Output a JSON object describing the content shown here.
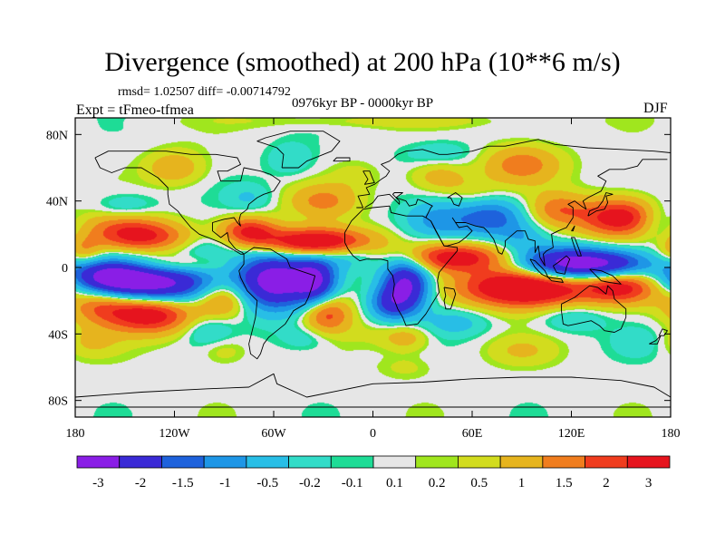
{
  "title": "Divergence (smoothed) at 200 hPa (10**6 m/s)",
  "stats_label": "rmsd= 1.02507 diff= -0.00714792",
  "experiment_label": "Expt = tFmeo-tfmea",
  "period_label": "0976kyr BP - 0000kyr BP",
  "season_label": "DJF",
  "chart_data": {
    "type": "heatmap",
    "title": "Divergence (smoothed) at 200 hPa (10**6 m/s)",
    "projection": "cylindrical-equidistant",
    "x_range": [
      -180,
      180
    ],
    "y_range": [
      -90,
      90
    ],
    "x_ticks": [
      {
        "value": -180,
        "label": "180"
      },
      {
        "value": -120,
        "label": "120W"
      },
      {
        "value": -60,
        "label": "60W"
      },
      {
        "value": 0,
        "label": "0"
      },
      {
        "value": 60,
        "label": "60E"
      },
      {
        "value": 120,
        "label": "120E"
      },
      {
        "value": 180,
        "label": "180"
      }
    ],
    "y_ticks": [
      {
        "value": 80,
        "label": "80N"
      },
      {
        "value": 40,
        "label": "40N"
      },
      {
        "value": 0,
        "label": "0"
      },
      {
        "value": -40,
        "label": "40S"
      },
      {
        "value": -80,
        "label": "80S"
      }
    ],
    "colorbar": {
      "levels": [
        "-3",
        "-2",
        "-1.5",
        "-1",
        "-0.5",
        "-0.2",
        "-0.1",
        "0.1",
        "0.2",
        "0.5",
        "1",
        "1.5",
        "2",
        "3"
      ],
      "colors": [
        "#8a1ee6",
        "#3a2ad6",
        "#1e62dc",
        "#1e96e6",
        "#28bee6",
        "#32dcc8",
        "#1edc96",
        "#e6e6e6",
        "#a0e61e",
        "#d2dc1e",
        "#e6b41e",
        "#f07d1e",
        "#f03c1e",
        "#e6141e"
      ]
    },
    "features": [
      {
        "lon": -130,
        "lat": -10,
        "value": -3.4,
        "slon": 26,
        "slat": 8
      },
      {
        "lon": -160,
        "lat": -5,
        "value": -2.6,
        "slon": 16,
        "slat": 7
      },
      {
        "lon": -60,
        "lat": -8,
        "value": -3.6,
        "slon": 16,
        "slat": 12
      },
      {
        "lon": -35,
        "lat": -8,
        "value": -2.6,
        "slon": 9,
        "slat": 10
      },
      {
        "lon": 20,
        "lat": -10,
        "value": -3.3,
        "slon": 10,
        "slat": 11
      },
      {
        "lon": 10,
        "lat": -22,
        "value": -1.6,
        "slon": 9,
        "slat": 7
      },
      {
        "lon": 115,
        "lat": 2,
        "value": -3.2,
        "slon": 20,
        "slat": 7
      },
      {
        "lon": 145,
        "lat": 2,
        "value": -2.2,
        "slon": 18,
        "slat": 6
      },
      {
        "lon": 72,
        "lat": 30,
        "value": -1.8,
        "slon": 14,
        "slat": 8
      },
      {
        "lon": 40,
        "lat": 28,
        "value": -1.2,
        "slon": 14,
        "slat": 8
      },
      {
        "lon": 172,
        "lat": 28,
        "value": -1.0,
        "slon": 10,
        "slat": 8
      },
      {
        "lon": -15,
        "lat": 8,
        "value": -0.9,
        "slon": 13,
        "slat": 6
      },
      {
        "lon": 90,
        "lat": 18,
        "value": -0.7,
        "slon": 10,
        "slat": 6
      },
      {
        "lon": -100,
        "lat": 12,
        "value": -0.6,
        "slon": 14,
        "slat": 7
      },
      {
        "lon": -150,
        "lat": 36,
        "value": -0.6,
        "slon": 14,
        "slat": 6
      },
      {
        "lon": -75,
        "lat": 42,
        "value": -0.5,
        "slon": 10,
        "slat": 6
      },
      {
        "lon": -50,
        "lat": 65,
        "value": -0.5,
        "slon": 10,
        "slat": 7
      },
      {
        "lon": 40,
        "lat": 68,
        "value": -0.5,
        "slon": 16,
        "slat": 6
      },
      {
        "lon": -40,
        "lat": -42,
        "value": -0.5,
        "slon": 12,
        "slat": 6
      },
      {
        "lon": 50,
        "lat": -33,
        "value": -0.7,
        "slon": 14,
        "slat": 6
      },
      {
        "lon": 120,
        "lat": -30,
        "value": -0.6,
        "slon": 14,
        "slat": 6
      },
      {
        "lon": -100,
        "lat": -38,
        "value": -0.6,
        "slon": 10,
        "slat": 6
      },
      {
        "lon": 160,
        "lat": -45,
        "value": -0.4,
        "slon": 10,
        "slat": 6
      },
      {
        "lon": -140,
        "lat": 18,
        "value": 2.0,
        "slon": 20,
        "slat": 6
      },
      {
        "lon": -150,
        "lat": 26,
        "value": 1.0,
        "slon": 18,
        "slat": 6
      },
      {
        "lon": -135,
        "lat": -28,
        "value": 2.6,
        "slon": 18,
        "slat": 8
      },
      {
        "lon": -165,
        "lat": -22,
        "value": 1.4,
        "slon": 14,
        "slat": 8
      },
      {
        "lon": -90,
        "lat": -18,
        "value": 1.6,
        "slon": 12,
        "slat": 8
      },
      {
        "lon": -28,
        "lat": -28,
        "value": 1.8,
        "slon": 10,
        "slat": 8
      },
      {
        "lon": -35,
        "lat": 15,
        "value": 3.2,
        "slon": 24,
        "slat": 6
      },
      {
        "lon": -75,
        "lat": 22,
        "value": 2.0,
        "slon": 12,
        "slat": 6
      },
      {
        "lon": 50,
        "lat": 6,
        "value": 2.4,
        "slon": 22,
        "slat": 6
      },
      {
        "lon": 92,
        "lat": -12,
        "value": 3.6,
        "slon": 26,
        "slat": 8
      },
      {
        "lon": 150,
        "lat": -12,
        "value": 2.2,
        "slon": 16,
        "slat": 7
      },
      {
        "lon": 150,
        "lat": 30,
        "value": 2.6,
        "slon": 18,
        "slat": 8
      },
      {
        "lon": 112,
        "lat": 35,
        "value": 1.2,
        "slon": 12,
        "slat": 7
      },
      {
        "lon": -30,
        "lat": 40,
        "value": 1.1,
        "slon": 14,
        "slat": 7
      },
      {
        "lon": 90,
        "lat": 62,
        "value": 1.3,
        "slon": 16,
        "slat": 8
      },
      {
        "lon": 40,
        "lat": 55,
        "value": 0.8,
        "slon": 12,
        "slat": 7
      },
      {
        "lon": -120,
        "lat": 60,
        "value": 0.9,
        "slon": 12,
        "slat": 7
      },
      {
        "lon": 0,
        "lat": 88,
        "value": 0.3,
        "slon": 60,
        "slat": 3
      },
      {
        "lon": -10,
        "lat": 55,
        "value": 0.3,
        "slon": 10,
        "slat": 6
      },
      {
        "lon": 20,
        "lat": -42,
        "value": 0.8,
        "slon": 10,
        "slat": 6
      },
      {
        "lon": 90,
        "lat": -50,
        "value": 0.5,
        "slon": 14,
        "slat": 6
      },
      {
        "lon": -170,
        "lat": -45,
        "value": 0.5,
        "slon": 12,
        "slat": 6
      },
      {
        "lon": -90,
        "lat": -50,
        "value": 0.4,
        "slon": 10,
        "slat": 6
      },
      {
        "lon": 20,
        "lat": -60,
        "value": 0.3,
        "slon": 12,
        "slat": 5
      },
      {
        "lon": -175,
        "lat": 10,
        "value": 1.0,
        "slon": 8,
        "slat": 6
      },
      {
        "lon": -120,
        "lat": 2,
        "value": 0.8,
        "slon": 20,
        "slat": 4
      },
      {
        "lon": 0,
        "lat": -40,
        "value": 0.2,
        "slon": 14,
        "slat": 6
      },
      {
        "lon": 60,
        "lat": 45,
        "value": 0.4,
        "slon": 12,
        "slat": 6
      }
    ]
  }
}
